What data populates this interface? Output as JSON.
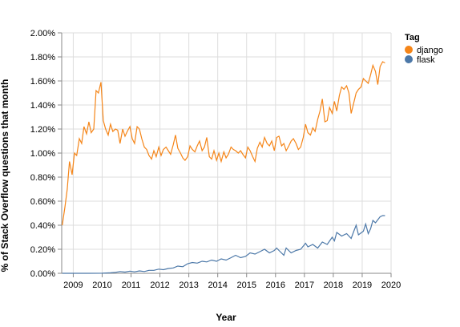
{
  "chart_data": {
    "type": "line",
    "xlabel": "Year",
    "ylabel": "% of Stack Overflow questions that month",
    "xlim": [
      2008.6,
      2020.0
    ],
    "ylim": [
      0,
      2.0
    ],
    "x_ticks": [
      "2009",
      "2010",
      "2011",
      "2012",
      "2013",
      "2014",
      "2015",
      "2016",
      "2017",
      "2018",
      "2019",
      "2020"
    ],
    "y_ticks": [
      "0.00%",
      "0.20%",
      "0.40%",
      "0.60%",
      "0.80%",
      "1.00%",
      "1.20%",
      "1.40%",
      "1.60%",
      "1.80%",
      "2.00%"
    ],
    "grid": true,
    "legend": {
      "title": "Tag",
      "placement": "right",
      "entries": [
        {
          "label": "django",
          "color": "#f58518"
        },
        {
          "label": "flask",
          "color": "#4c78a8"
        }
      ]
    },
    "series": [
      {
        "name": "django",
        "color": "#f58518",
        "points": [
          [
            2008.62,
            0.4
          ],
          [
            2008.71,
            0.55
          ],
          [
            2008.79,
            0.7
          ],
          [
            2008.87,
            0.93
          ],
          [
            2008.96,
            0.82
          ],
          [
            2009.04,
            1.0
          ],
          [
            2009.12,
            0.98
          ],
          [
            2009.21,
            1.12
          ],
          [
            2009.29,
            1.08
          ],
          [
            2009.37,
            1.22
          ],
          [
            2009.46,
            1.16
          ],
          [
            2009.54,
            1.26
          ],
          [
            2009.62,
            1.17
          ],
          [
            2009.71,
            1.2
          ],
          [
            2009.79,
            1.52
          ],
          [
            2009.87,
            1.5
          ],
          [
            2009.96,
            1.59
          ],
          [
            2010.04,
            1.27
          ],
          [
            2010.12,
            1.2
          ],
          [
            2010.21,
            1.15
          ],
          [
            2010.29,
            1.24
          ],
          [
            2010.37,
            1.18
          ],
          [
            2010.46,
            1.2
          ],
          [
            2010.54,
            1.19
          ],
          [
            2010.62,
            1.08
          ],
          [
            2010.71,
            1.2
          ],
          [
            2010.79,
            1.14
          ],
          [
            2010.87,
            1.18
          ],
          [
            2010.96,
            1.22
          ],
          [
            2011.04,
            1.12
          ],
          [
            2011.12,
            1.08
          ],
          [
            2011.21,
            1.22
          ],
          [
            2011.29,
            1.2
          ],
          [
            2011.37,
            1.12
          ],
          [
            2011.46,
            1.05
          ],
          [
            2011.54,
            1.03
          ],
          [
            2011.62,
            0.98
          ],
          [
            2011.71,
            0.95
          ],
          [
            2011.79,
            1.02
          ],
          [
            2011.87,
            0.97
          ],
          [
            2011.96,
            1.05
          ],
          [
            2012.04,
            0.98
          ],
          [
            2012.12,
            1.03
          ],
          [
            2012.21,
            1.05
          ],
          [
            2012.29,
            1.02
          ],
          [
            2012.37,
            0.99
          ],
          [
            2012.46,
            1.07
          ],
          [
            2012.54,
            1.15
          ],
          [
            2012.62,
            1.04
          ],
          [
            2012.71,
            1.0
          ],
          [
            2012.79,
            0.96
          ],
          [
            2012.87,
            0.94
          ],
          [
            2012.96,
            0.97
          ],
          [
            2013.04,
            1.06
          ],
          [
            2013.12,
            1.03
          ],
          [
            2013.21,
            1.01
          ],
          [
            2013.29,
            1.06
          ],
          [
            2013.37,
            1.1
          ],
          [
            2013.46,
            1.02
          ],
          [
            2013.54,
            1.05
          ],
          [
            2013.62,
            1.13
          ],
          [
            2013.71,
            0.97
          ],
          [
            2013.79,
            0.95
          ],
          [
            2013.87,
            1.02
          ],
          [
            2013.96,
            0.94
          ],
          [
            2014.04,
            1.0
          ],
          [
            2014.12,
            0.93
          ],
          [
            2014.21,
            1.01
          ],
          [
            2014.29,
            0.96
          ],
          [
            2014.37,
            0.99
          ],
          [
            2014.46,
            1.05
          ],
          [
            2014.54,
            1.03
          ],
          [
            2014.62,
            1.02
          ],
          [
            2014.71,
            1.0
          ],
          [
            2014.79,
            1.02
          ],
          [
            2014.87,
            0.99
          ],
          [
            2014.96,
            0.96
          ],
          [
            2015.04,
            1.05
          ],
          [
            2015.12,
            1.02
          ],
          [
            2015.21,
            0.97
          ],
          [
            2015.29,
            0.93
          ],
          [
            2015.37,
            1.04
          ],
          [
            2015.46,
            1.09
          ],
          [
            2015.54,
            1.05
          ],
          [
            2015.62,
            1.13
          ],
          [
            2015.71,
            1.08
          ],
          [
            2015.79,
            1.06
          ],
          [
            2015.87,
            1.1
          ],
          [
            2015.96,
            1.02
          ],
          [
            2016.04,
            1.13
          ],
          [
            2016.12,
            1.14
          ],
          [
            2016.21,
            1.06
          ],
          [
            2016.29,
            1.08
          ],
          [
            2016.37,
            1.02
          ],
          [
            2016.46,
            1.06
          ],
          [
            2016.54,
            1.1
          ],
          [
            2016.62,
            1.12
          ],
          [
            2016.71,
            1.08
          ],
          [
            2016.79,
            1.03
          ],
          [
            2016.87,
            1.05
          ],
          [
            2016.96,
            1.13
          ],
          [
            2017.04,
            1.24
          ],
          [
            2017.12,
            1.17
          ],
          [
            2017.21,
            1.15
          ],
          [
            2017.29,
            1.21
          ],
          [
            2017.37,
            1.18
          ],
          [
            2017.46,
            1.28
          ],
          [
            2017.54,
            1.35
          ],
          [
            2017.62,
            1.45
          ],
          [
            2017.71,
            1.26
          ],
          [
            2017.79,
            1.27
          ],
          [
            2017.87,
            1.38
          ],
          [
            2017.96,
            1.33
          ],
          [
            2018.04,
            1.43
          ],
          [
            2018.12,
            1.35
          ],
          [
            2018.21,
            1.48
          ],
          [
            2018.29,
            1.55
          ],
          [
            2018.37,
            1.53
          ],
          [
            2018.46,
            1.56
          ],
          [
            2018.54,
            1.5
          ],
          [
            2018.62,
            1.33
          ],
          [
            2018.71,
            1.42
          ],
          [
            2018.79,
            1.5
          ],
          [
            2018.87,
            1.53
          ],
          [
            2018.96,
            1.55
          ],
          [
            2019.04,
            1.62
          ],
          [
            2019.12,
            1.6
          ],
          [
            2019.21,
            1.58
          ],
          [
            2019.29,
            1.65
          ],
          [
            2019.37,
            1.73
          ],
          [
            2019.46,
            1.68
          ],
          [
            2019.54,
            1.57
          ],
          [
            2019.62,
            1.72
          ],
          [
            2019.71,
            1.76
          ],
          [
            2019.79,
            1.75
          ]
        ]
      },
      {
        "name": "flask",
        "color": "#4c78a8",
        "points": [
          [
            2008.62,
            0.0
          ],
          [
            2009.0,
            0.0
          ],
          [
            2009.5,
            0.0
          ],
          [
            2010.0,
            0.001
          ],
          [
            2010.29,
            0.004
          ],
          [
            2010.46,
            0.008
          ],
          [
            2010.62,
            0.015
          ],
          [
            2010.79,
            0.01
          ],
          [
            2010.96,
            0.018
          ],
          [
            2011.12,
            0.012
          ],
          [
            2011.29,
            0.02
          ],
          [
            2011.46,
            0.015
          ],
          [
            2011.62,
            0.025
          ],
          [
            2011.79,
            0.025
          ],
          [
            2011.96,
            0.035
          ],
          [
            2012.12,
            0.03
          ],
          [
            2012.29,
            0.04
          ],
          [
            2012.46,
            0.045
          ],
          [
            2012.62,
            0.06
          ],
          [
            2012.79,
            0.055
          ],
          [
            2012.96,
            0.08
          ],
          [
            2013.12,
            0.09
          ],
          [
            2013.29,
            0.085
          ],
          [
            2013.46,
            0.1
          ],
          [
            2013.62,
            0.095
          ],
          [
            2013.79,
            0.11
          ],
          [
            2013.96,
            0.1
          ],
          [
            2014.12,
            0.12
          ],
          [
            2014.29,
            0.11
          ],
          [
            2014.46,
            0.13
          ],
          [
            2014.62,
            0.15
          ],
          [
            2014.79,
            0.13
          ],
          [
            2014.96,
            0.14
          ],
          [
            2015.12,
            0.17
          ],
          [
            2015.29,
            0.16
          ],
          [
            2015.46,
            0.18
          ],
          [
            2015.62,
            0.2
          ],
          [
            2015.79,
            0.17
          ],
          [
            2015.96,
            0.19
          ],
          [
            2016.04,
            0.21
          ],
          [
            2016.12,
            0.19
          ],
          [
            2016.29,
            0.15
          ],
          [
            2016.37,
            0.21
          ],
          [
            2016.54,
            0.17
          ],
          [
            2016.71,
            0.19
          ],
          [
            2016.87,
            0.2
          ],
          [
            2017.04,
            0.25
          ],
          [
            2017.12,
            0.22
          ],
          [
            2017.29,
            0.24
          ],
          [
            2017.46,
            0.21
          ],
          [
            2017.62,
            0.26
          ],
          [
            2017.79,
            0.24
          ],
          [
            2017.96,
            0.3
          ],
          [
            2018.04,
            0.27
          ],
          [
            2018.12,
            0.34
          ],
          [
            2018.29,
            0.31
          ],
          [
            2018.46,
            0.33
          ],
          [
            2018.62,
            0.29
          ],
          [
            2018.71,
            0.35
          ],
          [
            2018.79,
            0.4
          ],
          [
            2018.87,
            0.32
          ],
          [
            2019.04,
            0.35
          ],
          [
            2019.12,
            0.41
          ],
          [
            2019.21,
            0.33
          ],
          [
            2019.29,
            0.37
          ],
          [
            2019.37,
            0.44
          ],
          [
            2019.46,
            0.42
          ],
          [
            2019.62,
            0.47
          ],
          [
            2019.71,
            0.48
          ],
          [
            2019.79,
            0.48
          ]
        ]
      }
    ]
  }
}
